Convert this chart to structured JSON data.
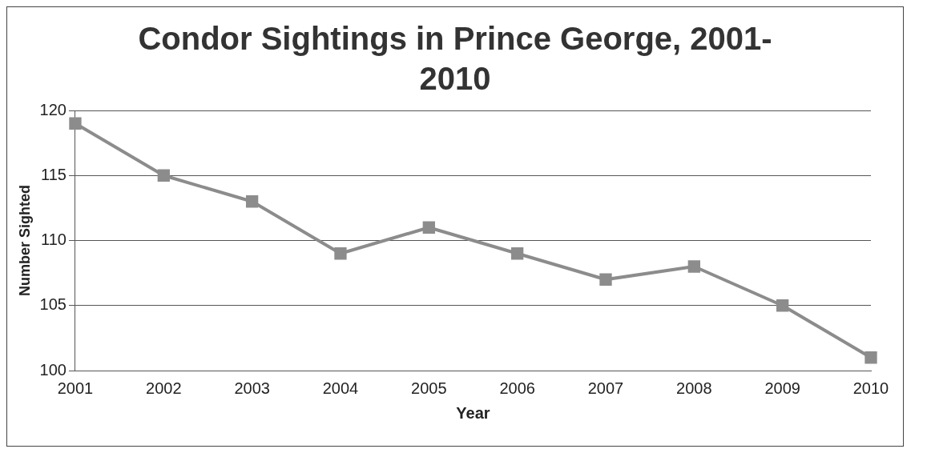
{
  "chart_data": {
    "type": "line",
    "title": "Condor Sightings in Prince George, 2001-2010",
    "xlabel": "Year",
    "ylabel": "Number Sighted",
    "categories": [
      "2001",
      "2002",
      "2003",
      "2004",
      "2005",
      "2006",
      "2007",
      "2008",
      "2009",
      "2010"
    ],
    "series": [
      {
        "color": "#8c8c8c",
        "values": [
          119,
          115,
          113,
          109,
          111,
          109,
          107,
          108,
          105,
          101
        ]
      }
    ],
    "ylim": [
      100,
      120
    ],
    "yticks": [
      100,
      105,
      110,
      115,
      120
    ],
    "grid": "y",
    "legend": false,
    "marker": "square",
    "line_style": "solid"
  }
}
